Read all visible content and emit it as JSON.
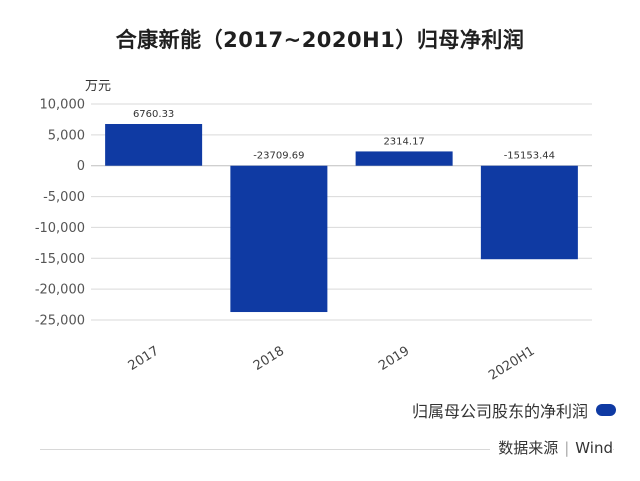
{
  "chart_data": {
    "type": "bar",
    "title": "合康新能（2017~2020H1）归母净利润",
    "ylabel": "万元",
    "xlabel": "",
    "categories": [
      "2017",
      "2018",
      "2019",
      "2020H1"
    ],
    "series": [
      {
        "name": "归属母公司股东的净利润",
        "values": [
          6760.33,
          -23709.69,
          2314.17,
          -15153.44
        ]
      }
    ],
    "data_labels": [
      "6760.33",
      "-23709.69",
      "2314.17",
      "-15153.44"
    ],
    "ylim": [
      -25000,
      10000
    ],
    "yticks": [
      10000,
      5000,
      0,
      -5000,
      -10000,
      -15000,
      -20000,
      -25000
    ],
    "ytick_labels": [
      "10,000",
      "5,000",
      "0",
      "-5,000",
      "-10,000",
      "-15,000",
      "-20,000",
      "-25,000"
    ],
    "grid": true,
    "legend_position": "bottom-right",
    "bar_color": "#0f3aa3",
    "grid_color": "#d9d9d9"
  },
  "source": {
    "label": "数据来源",
    "value": "Wind"
  }
}
